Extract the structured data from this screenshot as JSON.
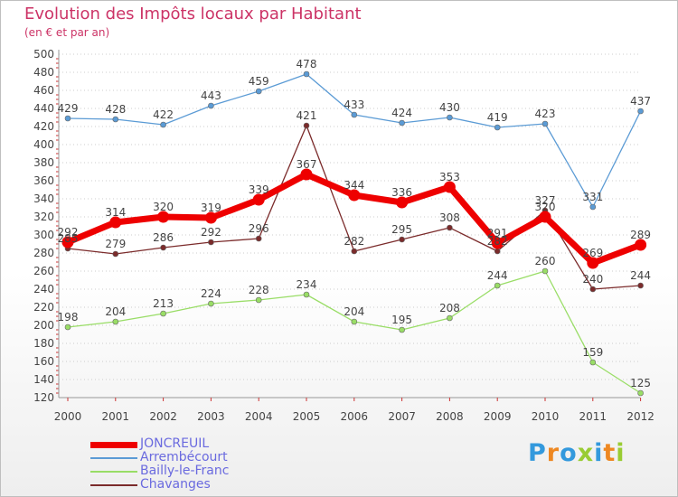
{
  "header": {
    "title": "Evolution des Impôts locaux par Habitant",
    "subtitle": "(en € et par an)"
  },
  "chart_data": {
    "type": "line",
    "title": "Evolution des Impôts locaux par Habitant",
    "subtitle": "(en € et par an)",
    "xlabel": "",
    "ylabel": "",
    "x": [
      "2000",
      "2001",
      "2002",
      "2003",
      "2004",
      "2005",
      "2006",
      "2007",
      "2008",
      "2009",
      "2010",
      "2011",
      "2012"
    ],
    "ylim": [
      120,
      500
    ],
    "yticks": [
      120,
      140,
      160,
      180,
      200,
      220,
      240,
      260,
      280,
      300,
      320,
      340,
      360,
      380,
      400,
      420,
      440,
      460,
      480,
      500
    ],
    "grid": "horizontal",
    "legend_position": "bottom-left",
    "series": [
      {
        "name": "JONCREUIL",
        "color": "#ee0000",
        "values": [
          292,
          314,
          320,
          319,
          339,
          367,
          344,
          336,
          353,
          291,
          320,
          269,
          289
        ]
      },
      {
        "name": "Arrembécourt",
        "color": "#5b9bd5",
        "values": [
          429,
          428,
          422,
          443,
          459,
          478,
          433,
          424,
          430,
          419,
          423,
          331,
          437
        ]
      },
      {
        "name": "Bailly-le-Franc",
        "color": "#99dd66",
        "values": [
          198,
          204,
          213,
          224,
          228,
          234,
          204,
          195,
          208,
          244,
          260,
          159,
          125
        ]
      },
      {
        "name": "Chavanges",
        "color": "#7b2b2b",
        "values": [
          285,
          279,
          286,
          292,
          296,
          421,
          282,
          295,
          308,
          282,
          327,
          240,
          244
        ]
      }
    ]
  },
  "logo": {
    "text": "Proxiti"
  }
}
